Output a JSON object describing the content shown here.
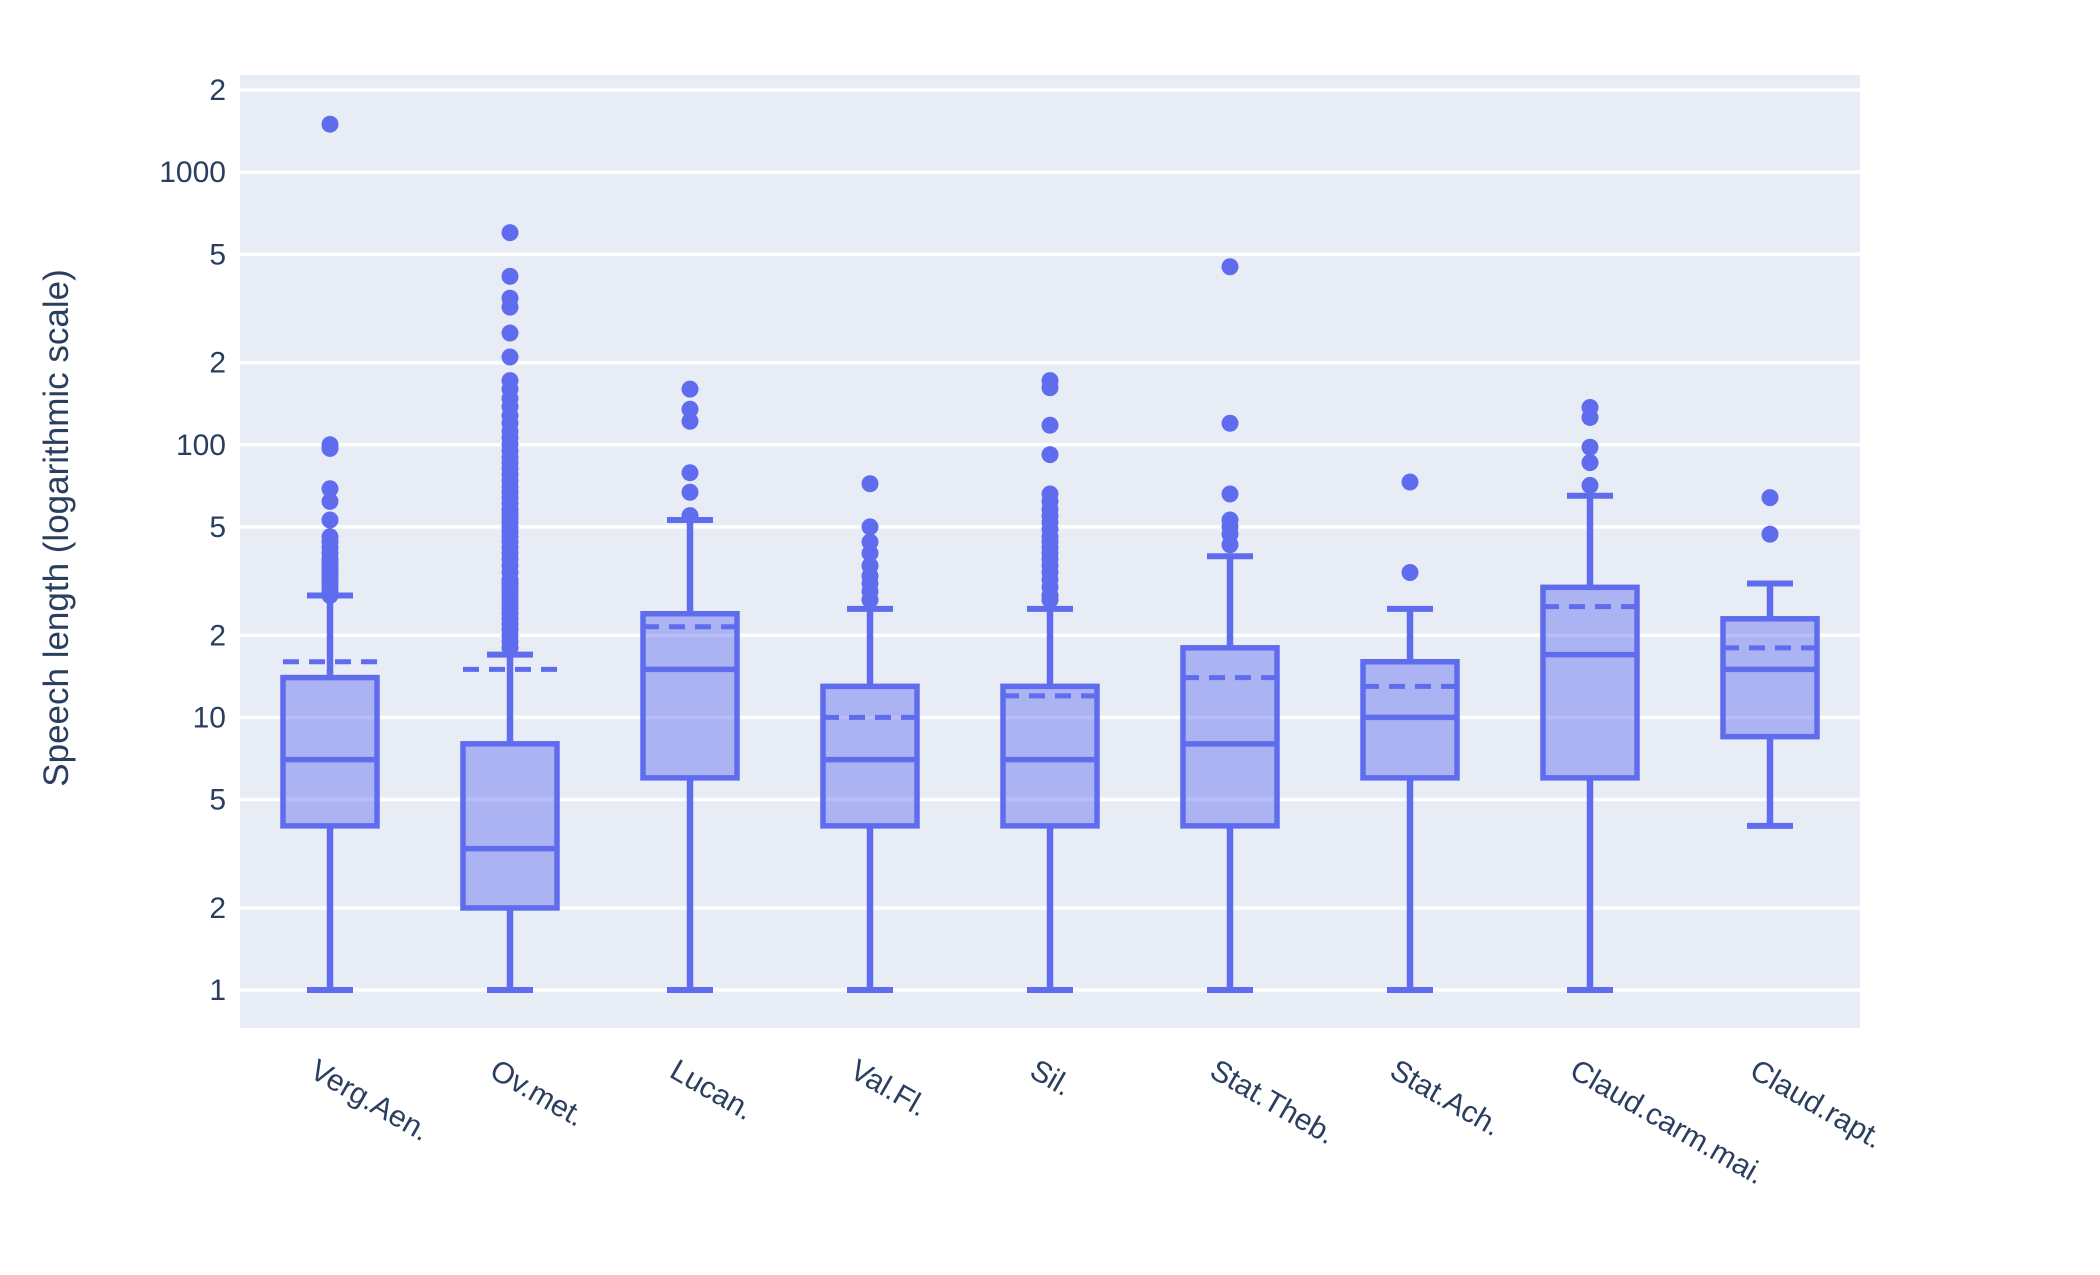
{
  "figure": {
    "background": "#ffffff",
    "plot_background": "#e8ecf5",
    "grid_color": "#ffffff",
    "text_color": "#2a3f5f",
    "box_line_color": "#5f6cee",
    "box_fill_color": "rgba(95,108,238,0.44)",
    "outlier_color": "#5f6cee"
  },
  "y_axis": {
    "title": "Speech length (logarithmic scale)",
    "type": "log",
    "tick_values": [
      1,
      2,
      5,
      10,
      20,
      50,
      100,
      200,
      500,
      1000,
      2000
    ],
    "tick_labels": [
      "1",
      "2",
      "5",
      "10",
      "2",
      "5",
      "100",
      "2",
      "5",
      "1000",
      "2"
    ]
  },
  "x_axis": {
    "tick_angle": 30,
    "categories": [
      "Verg.Aen.",
      "Ov.met.",
      "Lucan.",
      "Val.Fl.",
      "Sil.",
      "Stat.Theb.",
      "Stat.Ach.",
      "Claud.carm.mai.",
      "Claud.rapt."
    ]
  },
  "chart_data": {
    "type": "box",
    "title": "",
    "xlabel": "",
    "ylabel": "Speech length (logarithmic scale)",
    "log_scale": true,
    "y_range": [
      0.73,
      2300
    ],
    "grid": true,
    "legend": false,
    "categories": [
      "Verg.Aen.",
      "Ov.met.",
      "Lucan.",
      "Val.Fl.",
      "Sil.",
      "Stat.Theb.",
      "Stat.Ach.",
      "Claud.carm.mai.",
      "Claud.rapt."
    ],
    "boxes": [
      {
        "name": "Verg.Aen.",
        "whisker_low": 1,
        "q1": 4,
        "median": 7,
        "q3": 14,
        "whisker_high": 28,
        "mean": 16,
        "outliers": [
          1500,
          100,
          97,
          69,
          62,
          53,
          46,
          44,
          42,
          40,
          38,
          37,
          36,
          35,
          34,
          33,
          32,
          31,
          30,
          29,
          28
        ]
      },
      {
        "name": "Ov.met.",
        "whisker_low": 1,
        "q1": 2,
        "median": 3.3,
        "q3": 8,
        "whisker_high": 17,
        "mean": 15,
        "outliers": [
          600,
          415,
          345,
          320,
          257,
          210,
          172,
          160,
          148,
          138,
          128,
          120,
          112,
          106,
          100,
          95,
          90,
          86,
          82,
          78,
          74,
          70,
          67,
          64,
          61,
          58,
          56,
          54,
          52,
          50,
          48,
          46,
          44,
          42,
          40,
          38,
          36,
          34,
          32,
          31,
          30,
          29,
          28,
          27,
          26,
          25,
          24,
          23,
          22,
          21,
          20,
          19,
          18
        ]
      },
      {
        "name": "Lucan.",
        "whisker_low": 1,
        "q1": 6,
        "median": 15,
        "q3": 24,
        "whisker_high": 53,
        "mean": 21.5,
        "outliers": [
          160,
          135,
          122,
          79,
          67,
          55
        ]
      },
      {
        "name": "Val.Fl.",
        "whisker_low": 1,
        "q1": 4,
        "median": 7,
        "q3": 13,
        "whisker_high": 25,
        "mean": 10,
        "outliers": [
          72,
          50,
          44,
          40,
          36,
          33,
          31,
          29,
          27
        ]
      },
      {
        "name": "Sil.",
        "whisker_low": 1,
        "q1": 4,
        "median": 7,
        "q3": 13,
        "whisker_high": 25,
        "mean": 12,
        "outliers": [
          172,
          162,
          118,
          92,
          66,
          62,
          58,
          55,
          52,
          49,
          46,
          44,
          42,
          40,
          38,
          36,
          34,
          32,
          30,
          28,
          27
        ]
      },
      {
        "name": "Stat.Theb.",
        "whisker_low": 1,
        "q1": 4,
        "median": 8,
        "q3": 18,
        "whisker_high": 39,
        "mean": 14,
        "outliers": [
          450,
          120,
          66,
          53,
          50,
          47,
          43
        ]
      },
      {
        "name": "Stat.Ach.",
        "whisker_low": 1,
        "q1": 6,
        "median": 10,
        "q3": 16,
        "whisker_high": 25,
        "mean": 13,
        "outliers": [
          73,
          34
        ]
      },
      {
        "name": "Claud.carm.mai.",
        "whisker_low": 1,
        "q1": 6,
        "median": 17,
        "q3": 30,
        "whisker_high": 65,
        "mean": 25.5,
        "outliers": [
          137,
          126,
          98,
          86,
          71
        ]
      },
      {
        "name": "Claud.rapt.",
        "whisker_low": 4,
        "q1": 8.5,
        "median": 15,
        "q3": 23,
        "whisker_high": 31,
        "mean": 18,
        "outliers": [
          64,
          47
        ]
      }
    ]
  }
}
